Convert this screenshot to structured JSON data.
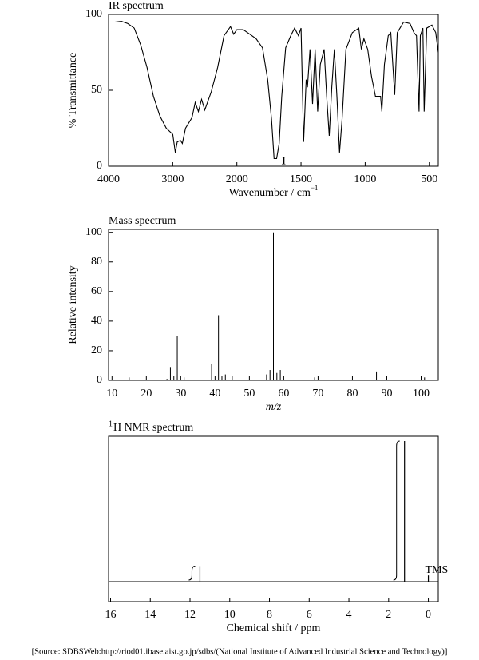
{
  "chart_data": [
    {
      "type": "line",
      "title": "IR spectrum",
      "ylabel": "% Transmittance",
      "xlabel": "Wavenumber / cm",
      "xlabel_superscript": "−1",
      "xlim": [
        4000,
        430
      ],
      "xbreak": 2000,
      "ylim": [
        0,
        100
      ],
      "xticks": [
        4000,
        3000,
        2000,
        1500,
        1000,
        500
      ],
      "yticks": [
        0,
        50,
        100
      ],
      "color": "#000000",
      "x": [
        4000,
        3900,
        3800,
        3700,
        3600,
        3500,
        3400,
        3300,
        3200,
        3100,
        3000,
        2960,
        2930,
        2880,
        2850,
        2800,
        2700,
        2650,
        2600,
        2550,
        2500,
        2400,
        2300,
        2200,
        2100,
        2050,
        2000,
        1950,
        1900,
        1850,
        1800,
        1760,
        1730,
        1710,
        1690,
        1670,
        1650,
        1620,
        1580,
        1550,
        1520,
        1500,
        1480,
        1460,
        1450,
        1430,
        1410,
        1390,
        1370,
        1350,
        1320,
        1300,
        1280,
        1260,
        1240,
        1220,
        1200,
        1180,
        1150,
        1100,
        1050,
        1030,
        1010,
        980,
        950,
        920,
        880,
        870,
        850,
        820,
        800,
        770,
        750,
        700,
        650,
        620,
        600,
        580,
        570,
        550,
        540,
        520,
        480,
        450,
        430
      ],
      "values": [
        95,
        95,
        95.5,
        94,
        91,
        80,
        65,
        46,
        33,
        25,
        21,
        9,
        16,
        17,
        15,
        25,
        32,
        42,
        36,
        44,
        37,
        49,
        65,
        86,
        92,
        87,
        90,
        90,
        87,
        84,
        78,
        57,
        31,
        5,
        5,
        15,
        46,
        78,
        86,
        91,
        86,
        91,
        16,
        57,
        52,
        77,
        41,
        77,
        36,
        67,
        77,
        46,
        20,
        52,
        77,
        46,
        9,
        31,
        77,
        88,
        91,
        77,
        84,
        77,
        59,
        46,
        46,
        36,
        67,
        86,
        88,
        47,
        88,
        95,
        94,
        88,
        86,
        36,
        86,
        91,
        36,
        91,
        93,
        88,
        75
      ],
      "annotation": {
        "text": "I",
        "x": 1690,
        "y": 3
      }
    },
    {
      "type": "stick",
      "title": "Mass spectrum",
      "ylabel": "Relative intensity",
      "xlabel": "m/z",
      "xlim": [
        9,
        105
      ],
      "ylim": [
        0,
        102
      ],
      "xticks": [
        10,
        20,
        30,
        40,
        50,
        60,
        70,
        80,
        90,
        100
      ],
      "yticks": [
        0,
        20,
        40,
        60,
        80,
        100
      ],
      "color": "#000000",
      "x": [
        15,
        26,
        27,
        28,
        29,
        31,
        39,
        41,
        42,
        43,
        45,
        55,
        56,
        57,
        58,
        59,
        69,
        87,
        101
      ],
      "values": [
        2,
        1,
        9,
        3,
        30,
        2,
        11,
        44,
        3,
        4,
        3,
        4,
        7,
        100,
        5,
        7,
        2,
        6,
        2
      ]
    },
    {
      "type": "nmr",
      "title": "H NMR spectrum",
      "title_superscript": "1",
      "xlabel": "Chemical shift / ppm",
      "xlim": [
        16.1,
        -0.5
      ],
      "xticks": [
        16,
        14,
        12,
        10,
        8,
        6,
        4,
        2,
        0
      ],
      "color": "#000000",
      "x": [
        11.5,
        1.2,
        0
      ],
      "values": [
        1,
        9,
        0.4
      ],
      "annotation": {
        "text": "TMS",
        "x": 0
      }
    }
  ],
  "source": "[Source: SDBSWeb:http://riod01.ibase.aist.go.jp/sdbs/(National Institute of Advanced Industrial Science and Technology)]"
}
